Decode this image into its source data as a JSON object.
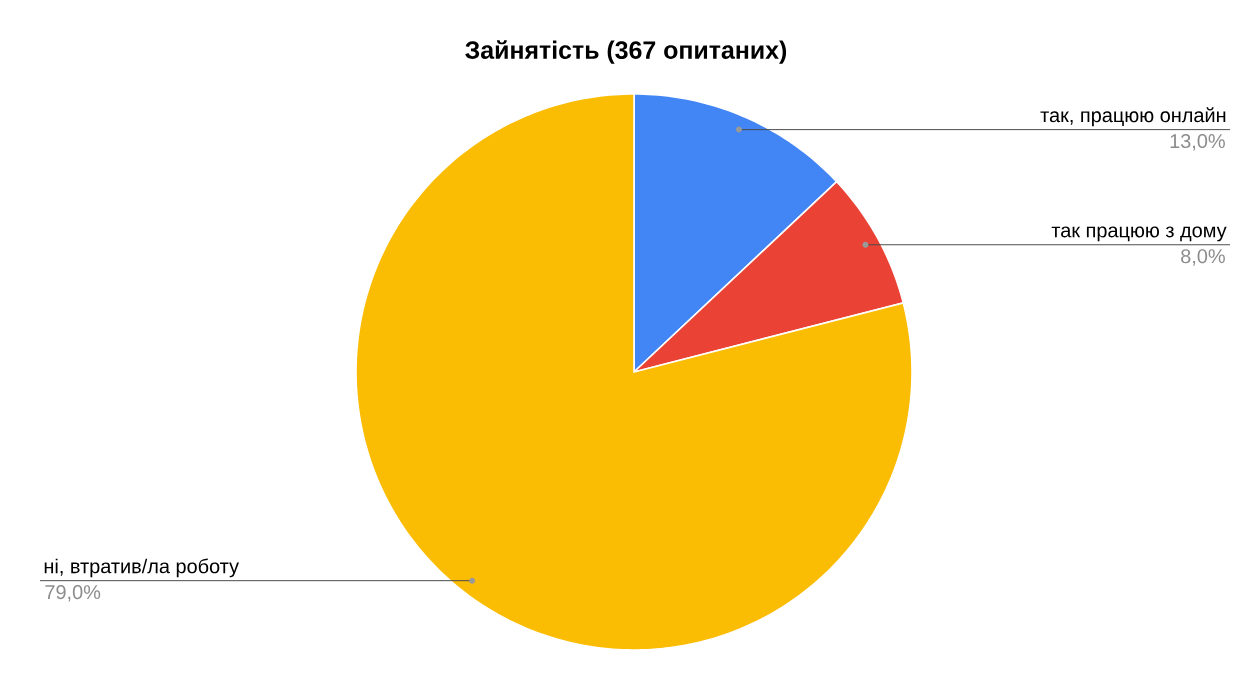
{
  "chart_data": {
    "type": "pie",
    "title": "Зайнятість (367 опитаних)",
    "categories": [
      "так, працюю онлайн",
      "так працюю з дому",
      "ні, втратив/ла роботу"
    ],
    "values": [
      13,
      8,
      79
    ],
    "colors": [
      "#4285f4",
      "#ea4335",
      "#fbbc04"
    ],
    "value_labels": [
      "13,0%",
      "8,0%",
      "79,0%"
    ]
  }
}
